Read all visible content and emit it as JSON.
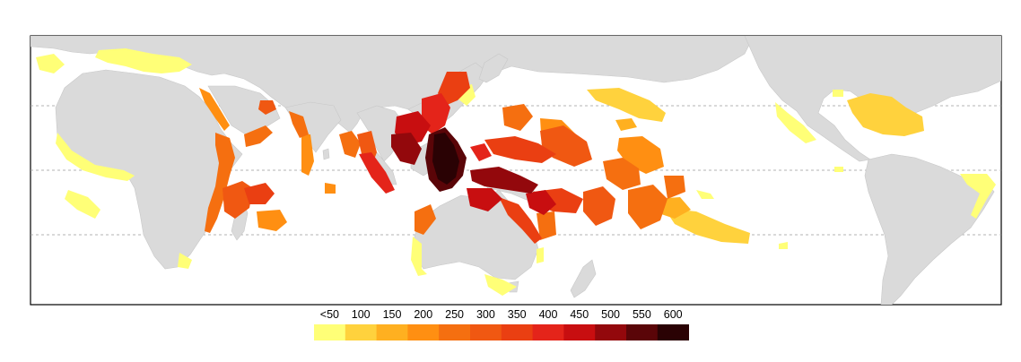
{
  "legend": {
    "labels": [
      "<50",
      "100",
      "150",
      "200",
      "250",
      "300",
      "350",
      "400",
      "450",
      "500",
      "550",
      "600"
    ],
    "colors": [
      "#ffff77",
      "#ffd23d",
      "#ffb020",
      "#ff8f12",
      "#f56f10",
      "#f05812",
      "#ea3f12",
      "#e4241a",
      "#c80e10",
      "#93080c",
      "#5a0508",
      "#2a0204"
    ]
  },
  "map": {
    "land_color": "#dadada",
    "gridline_color": "#9a9a9a",
    "frame_color": "#000000"
  }
}
